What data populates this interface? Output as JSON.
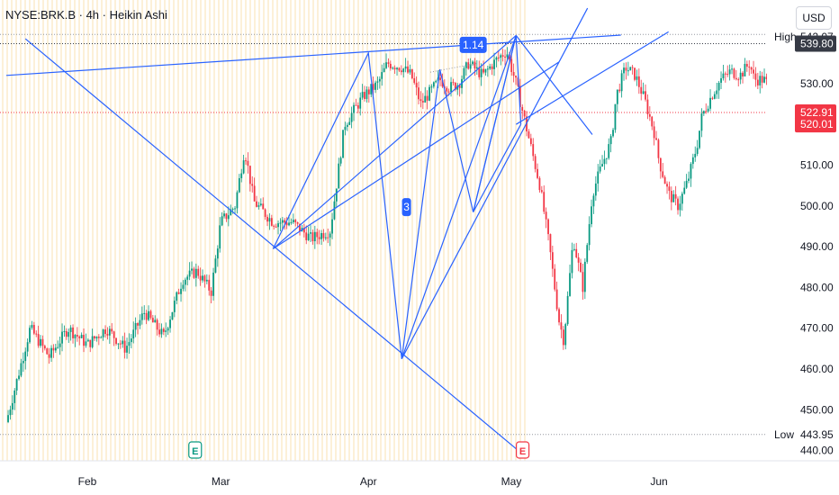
{
  "header": {
    "title": "NYSE:BRK.B · 4h · Heikin Ashi",
    "currency": "USD"
  },
  "colors": {
    "up": "#089981",
    "down": "#f23645",
    "trendline": "#2962ff",
    "axis_text": "#131722",
    "tag_dark": "#363a45",
    "tag_red": "#f23645",
    "grid_highlight": "#fbe9c8"
  },
  "chart_data": {
    "type": "candlestick",
    "chart_style": "Heikin Ashi",
    "interval": "4h",
    "symbol": "NYSE:BRK.B",
    "y_ticks": [
      440,
      450,
      460,
      470,
      480,
      490,
      500,
      510,
      530
    ],
    "y_tick_labels": [
      "440.00",
      "450.00",
      "460.00",
      "470.00",
      "480.00",
      "490.00",
      "500.00",
      "510.00",
      "530.00"
    ],
    "ylim": [
      437.5,
      550.5
    ],
    "x_labels": [
      "Feb",
      "Mar",
      "Apr",
      "May",
      "Jun"
    ],
    "high": {
      "label": "High",
      "value": "542.07"
    },
    "low": {
      "label": "Low",
      "value": "443.95"
    },
    "price_tags": [
      {
        "value": "539.80",
        "style": "dark"
      },
      {
        "value": "522.91",
        "style": "red"
      },
      {
        "value": "520.01",
        "style": "red"
      }
    ],
    "annotations": [
      {
        "text": "1.14",
        "date": "2025-04-23",
        "price": 539.5
      },
      {
        "text": "3",
        "date": "2025-04-09",
        "price": 499.7
      }
    ],
    "event_markers": [
      "E",
      "E"
    ],
    "series": [
      {
        "name": "",
        "points": [
          [
            "2025-01-15",
            447
          ],
          [
            "2025-01-20",
            470
          ],
          [
            "2025-01-24",
            463
          ],
          [
            "2025-01-28",
            470
          ],
          [
            "2025-02-01",
            466
          ],
          [
            "2025-02-05",
            470
          ],
          [
            "2025-02-09",
            465
          ],
          [
            "2025-02-13",
            474
          ],
          [
            "2025-02-17",
            468
          ],
          [
            "2025-02-21",
            482
          ],
          [
            "2025-02-24",
            484
          ],
          [
            "2025-02-27",
            479
          ],
          [
            "2025-03-01",
            496
          ],
          [
            "2025-03-04",
            500
          ],
          [
            "2025-03-06",
            514
          ],
          [
            "2025-03-08",
            501
          ],
          [
            "2025-03-12",
            496
          ],
          [
            "2025-03-16",
            496
          ],
          [
            "2025-03-20",
            492
          ],
          [
            "2025-03-24",
            494
          ],
          [
            "2025-03-27",
            520
          ],
          [
            "2025-03-31",
            527
          ],
          [
            "2025-04-03",
            530
          ],
          [
            "2025-04-05",
            535
          ],
          [
            "2025-04-08",
            534
          ],
          [
            "2025-04-10",
            532
          ],
          [
            "2025-04-12",
            525
          ],
          [
            "2025-04-14",
            528
          ],
          [
            "2025-04-16",
            531
          ],
          [
            "2025-04-18",
            529
          ],
          [
            "2025-04-20",
            530
          ],
          [
            "2025-04-22",
            535
          ],
          [
            "2025-04-23",
            534
          ],
          [
            "2025-04-25",
            532
          ],
          [
            "2025-04-28",
            536
          ],
          [
            "2025-04-30",
            538
          ],
          [
            "2025-05-02",
            530
          ],
          [
            "2025-05-05",
            515
          ],
          [
            "2025-05-07",
            505
          ],
          [
            "2025-05-09",
            490
          ],
          [
            "2025-05-11",
            472
          ],
          [
            "2025-05-12",
            467
          ],
          [
            "2025-05-14",
            492
          ],
          [
            "2025-05-16",
            480
          ],
          [
            "2025-05-18",
            503
          ],
          [
            "2025-05-20",
            510
          ],
          [
            "2025-05-22",
            516
          ],
          [
            "2025-05-23",
            527
          ],
          [
            "2025-05-25",
            534
          ],
          [
            "2025-05-27",
            532
          ],
          [
            "2025-05-29",
            526
          ],
          [
            "2025-05-31",
            518
          ],
          [
            "2025-06-01",
            511
          ],
          [
            "2025-06-03",
            503
          ],
          [
            "2025-06-05",
            500
          ],
          [
            "2025-06-07",
            506
          ],
          [
            "2025-06-09",
            515
          ],
          [
            "2025-06-10",
            522
          ],
          [
            "2025-06-12",
            527
          ],
          [
            "2025-06-14",
            531
          ],
          [
            "2025-06-16",
            533
          ],
          [
            "2025-06-18",
            532
          ],
          [
            "2025-06-20",
            535
          ],
          [
            "2025-06-21",
            531
          ],
          [
            "2025-06-23",
            531
          ],
          [
            "2025-06-25",
            528
          ],
          [
            "2025-06-27",
            533
          ],
          [
            "2025-06-28",
            538
          ],
          [
            "2025-06-29",
            541
          ],
          [
            "2025-06-30",
            538
          ],
          [
            "2025-07-01",
            530
          ],
          [
            "2025-07-02",
            522
          ]
        ]
      }
    ]
  }
}
